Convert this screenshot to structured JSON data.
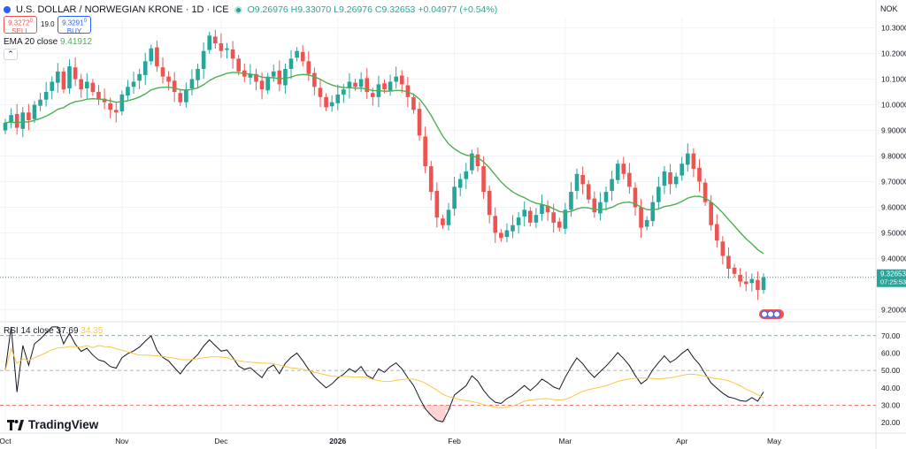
{
  "header": {
    "symbol": "U.S. DOLLAR / NORWEGIAN KRONE · 1D · ICE",
    "open": "O9.26976",
    "high": "H9.33070",
    "low": "L9.26976",
    "close": "C9.32653",
    "change": "+0.04977 (+0.54%)"
  },
  "trade": {
    "sell_price": "9.3272",
    "sell_sup": "0",
    "sell_label": "SELL",
    "spread": "19.0",
    "buy_price": "9.3291",
    "buy_sup": "0",
    "buy_label": "BUY"
  },
  "indicators": {
    "ema_label": "EMA 20 close",
    "ema_value": "9.41912",
    "rsi_label": "RSI 14 close",
    "rsi_value": "37.69",
    "rsi_ma_value": "34.35"
  },
  "currency": "NOK",
  "logo_text": "TradingView",
  "collapse_glyph": "⌃",
  "colors": {
    "up": "#26a69a",
    "down": "#ef5350",
    "ema": "#4caf50",
    "rsi": "#131722",
    "rsi_ma": "#f7c948",
    "grid": "#f0f3fa"
  },
  "chart_data": [
    {
      "type": "candlestick",
      "title": "U.S. DOLLAR / NORWEGIAN KRONE · 1D · ICE",
      "y_ticks": [
        "10.30000",
        "10.20000",
        "10.10000",
        "10.00000",
        "9.90000",
        "9.80000",
        "9.70000",
        "9.60000",
        "9.50000",
        "9.40000",
        "9.20000"
      ],
      "ylim": [
        9.16,
        10.34
      ],
      "x_ticks": [
        "Oct",
        "Nov",
        "Dec",
        "2026",
        "Feb",
        "Mar",
        "Apr",
        "May"
      ],
      "last_price_label": "9.32653",
      "countdown_label": "07:25:53",
      "close_series": [
        9.93,
        9.96,
        9.91,
        9.97,
        9.94,
        10.0,
        10.02,
        10.05,
        10.09,
        10.13,
        10.06,
        10.15,
        10.1,
        10.06,
        10.09,
        10.05,
        10.02,
        10.01,
        9.98,
        9.97,
        10.04,
        10.07,
        10.09,
        10.12,
        10.17,
        10.22,
        10.15,
        10.11,
        10.09,
        10.05,
        10.01,
        10.06,
        10.1,
        10.14,
        10.21,
        10.27,
        10.24,
        10.21,
        10.22,
        10.18,
        10.13,
        10.11,
        10.12,
        10.09,
        10.06,
        10.11,
        10.13,
        10.08,
        10.14,
        10.18,
        10.21,
        10.17,
        10.12,
        10.07,
        10.03,
        9.99,
        10.01,
        10.04,
        10.06,
        10.09,
        10.07,
        10.1,
        10.05,
        10.03,
        10.08,
        10.06,
        10.09,
        10.11,
        10.08,
        10.03,
        9.98,
        9.88,
        9.76,
        9.66,
        9.56,
        9.53,
        9.59,
        9.68,
        9.71,
        9.74,
        9.81,
        9.76,
        9.66,
        9.57,
        9.5,
        9.48,
        9.51,
        9.53,
        9.56,
        9.59,
        9.54,
        9.57,
        9.61,
        9.58,
        9.54,
        9.52,
        9.59,
        9.66,
        9.73,
        9.69,
        9.63,
        9.58,
        9.62,
        9.66,
        9.71,
        9.77,
        9.73,
        9.68,
        9.6,
        9.52,
        9.55,
        9.62,
        9.68,
        9.74,
        9.69,
        9.72,
        9.77,
        9.81,
        9.75,
        9.7,
        9.62,
        9.53,
        9.47,
        9.41,
        9.36,
        9.34,
        9.31,
        9.3,
        9.32,
        9.277,
        9.32653
      ],
      "ema20_last": 9.41912
    },
    {
      "type": "line",
      "title": "RSI 14 close",
      "y_ticks": [
        "70.00",
        "60.00",
        "50.00",
        "40.00",
        "30.00",
        "20.00"
      ],
      "ylim": [
        15,
        77
      ],
      "levels": [
        70,
        50,
        30
      ],
      "rsi_last": 37.69,
      "rsi_ma_last": 34.35
    }
  ]
}
